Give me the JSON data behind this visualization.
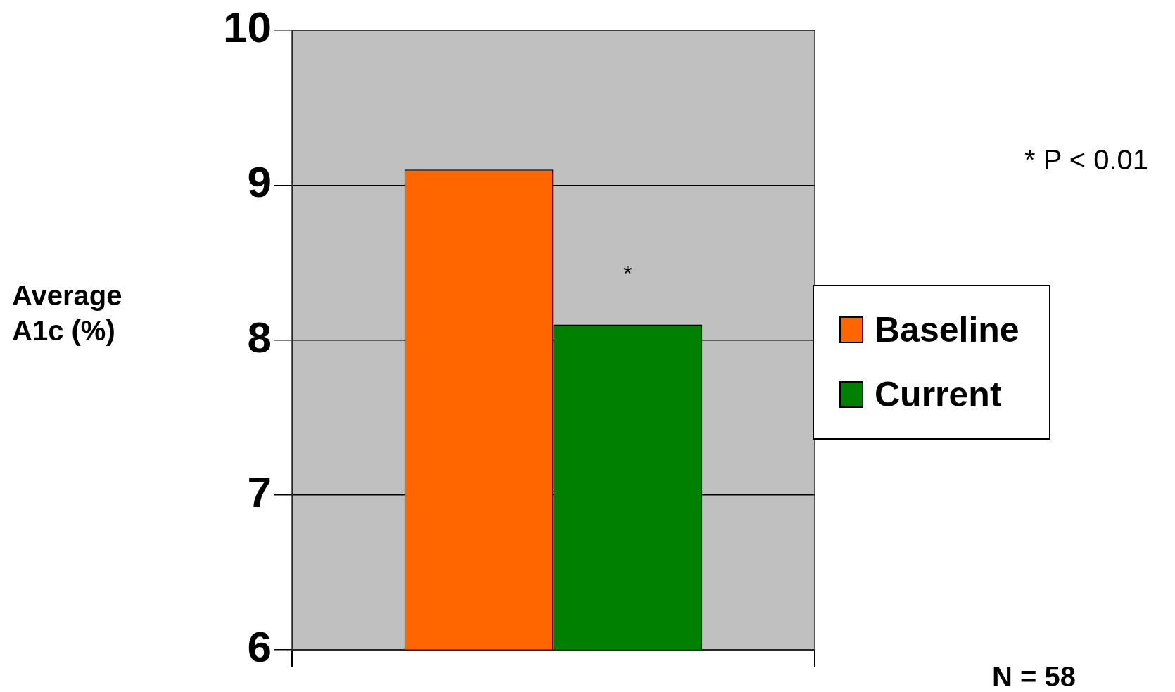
{
  "chart_data": {
    "type": "bar",
    "ylabel": "Average A1c (%)",
    "categories": [
      null
    ],
    "series": [
      {
        "name": "Baseline",
        "color": "#ff6600",
        "values": [
          9.1
        ]
      },
      {
        "name": "Current",
        "color": "#008000",
        "values": [
          8.1
        ]
      }
    ],
    "ylim": [
      6,
      10
    ],
    "yticks": [
      6,
      7,
      8,
      9,
      10
    ],
    "grid": "y",
    "legend": "right",
    "annotations": [
      "*",
      "* P < 0.01",
      "N = 58"
    ]
  }
}
